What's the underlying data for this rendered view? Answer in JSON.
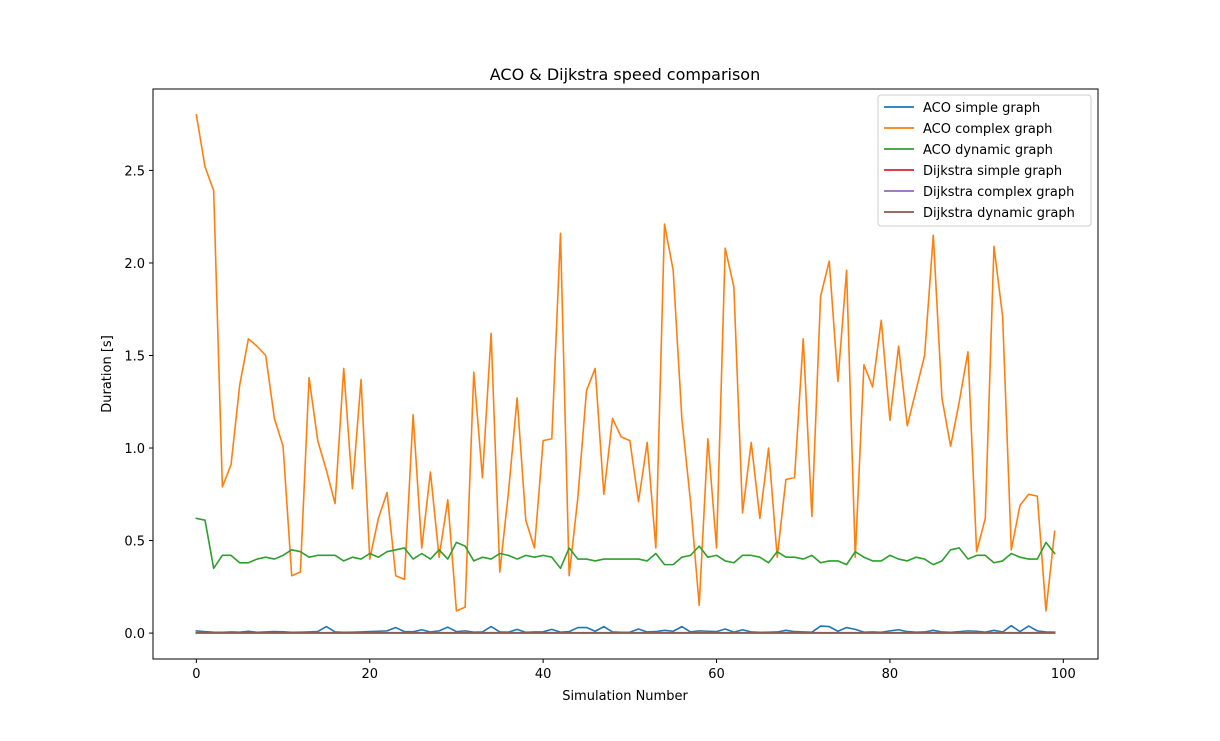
{
  "chart_data": {
    "type": "line",
    "title": "ACO & Dijkstra speed comparison",
    "xlabel": "Simulation Number",
    "ylabel": "Duration [s]",
    "xlim": [
      -5,
      104
    ],
    "ylim": [
      -0.14,
      2.94
    ],
    "xticks": [
      0,
      20,
      40,
      60,
      80,
      100
    ],
    "yticks": [
      0.0,
      0.5,
      1.0,
      1.5,
      2.0,
      2.5
    ],
    "xtick_labels": [
      "0",
      "20",
      "40",
      "60",
      "80",
      "100"
    ],
    "ytick_labels": [
      "0.0",
      "0.5",
      "1.0",
      "1.5",
      "2.0",
      "2.5"
    ],
    "grid": false,
    "legend_position": "top-right",
    "x": [
      0,
      1,
      2,
      3,
      4,
      5,
      6,
      7,
      8,
      9,
      10,
      11,
      12,
      13,
      14,
      15,
      16,
      17,
      18,
      19,
      20,
      21,
      22,
      23,
      24,
      25,
      26,
      27,
      28,
      29,
      30,
      31,
      32,
      33,
      34,
      35,
      36,
      37,
      38,
      39,
      40,
      41,
      42,
      43,
      44,
      45,
      46,
      47,
      48,
      49,
      50,
      51,
      52,
      53,
      54,
      55,
      56,
      57,
      58,
      59,
      60,
      61,
      62,
      63,
      64,
      65,
      66,
      67,
      68,
      69,
      70,
      71,
      72,
      73,
      74,
      75,
      76,
      77,
      78,
      79,
      80,
      81,
      82,
      83,
      84,
      85,
      86,
      87,
      88,
      89,
      90,
      91,
      92,
      93,
      94,
      95,
      96,
      97,
      98,
      99
    ],
    "series": [
      {
        "name": "ACO simple graph",
        "color": "#1f77b4",
        "values": [
          0.012,
          0.008,
          0.005,
          0.004,
          0.006,
          0.005,
          0.01,
          0.004,
          0.006,
          0.008,
          0.007,
          0.004,
          0.005,
          0.006,
          0.008,
          0.035,
          0.006,
          0.004,
          0.005,
          0.006,
          0.008,
          0.01,
          0.012,
          0.03,
          0.008,
          0.007,
          0.018,
          0.006,
          0.012,
          0.032,
          0.008,
          0.012,
          0.005,
          0.006,
          0.035,
          0.006,
          0.005,
          0.02,
          0.004,
          0.006,
          0.007,
          0.02,
          0.005,
          0.008,
          0.03,
          0.03,
          0.01,
          0.035,
          0.006,
          0.004,
          0.005,
          0.022,
          0.006,
          0.008,
          0.015,
          0.01,
          0.035,
          0.006,
          0.012,
          0.01,
          0.008,
          0.022,
          0.005,
          0.018,
          0.006,
          0.004,
          0.005,
          0.006,
          0.015,
          0.008,
          0.006,
          0.005,
          0.038,
          0.035,
          0.01,
          0.03,
          0.02,
          0.005,
          0.006,
          0.004,
          0.012,
          0.018,
          0.008,
          0.005,
          0.006,
          0.015,
          0.006,
          0.004,
          0.008,
          0.012,
          0.01,
          0.005,
          0.015,
          0.006,
          0.04,
          0.008,
          0.038,
          0.012,
          0.006,
          0.005
        ]
      },
      {
        "name": "ACO complex graph",
        "color": "#ff7f0e",
        "values": [
          2.8,
          2.52,
          2.39,
          0.79,
          0.91,
          1.34,
          1.59,
          1.55,
          1.5,
          1.16,
          1.01,
          0.31,
          0.33,
          1.38,
          1.04,
          0.88,
          0.7,
          1.43,
          0.78,
          1.37,
          0.4,
          0.62,
          0.76,
          0.31,
          0.29,
          1.18,
          0.46,
          0.87,
          0.41,
          0.72,
          0.12,
          0.14,
          1.41,
          0.84,
          1.62,
          0.33,
          0.76,
          1.27,
          0.61,
          0.46,
          1.04,
          1.05,
          2.16,
          0.31,
          0.73,
          1.31,
          1.43,
          0.75,
          1.16,
          1.06,
          1.04,
          0.71,
          1.03,
          0.46,
          2.21,
          1.96,
          1.16,
          0.71,
          0.15,
          1.05,
          0.46,
          2.08,
          1.87,
          0.65,
          1.03,
          0.62,
          1.0,
          0.41,
          0.83,
          0.84,
          1.59,
          0.63,
          1.82,
          2.01,
          1.36,
          1.96,
          0.41,
          1.45,
          1.33,
          1.69,
          1.15,
          1.55,
          1.12,
          1.31,
          1.5,
          2.15,
          1.27,
          1.01,
          1.25,
          1.52,
          0.44,
          0.62,
          2.09,
          1.71,
          0.45,
          0.69,
          0.75,
          0.74,
          0.12,
          0.55
        ]
      },
      {
        "name": "ACO dynamic graph",
        "color": "#2ca02c",
        "values": [
          0.62,
          0.61,
          0.35,
          0.42,
          0.42,
          0.38,
          0.38,
          0.4,
          0.41,
          0.4,
          0.42,
          0.45,
          0.44,
          0.41,
          0.42,
          0.42,
          0.42,
          0.39,
          0.41,
          0.4,
          0.43,
          0.41,
          0.44,
          0.45,
          0.46,
          0.4,
          0.43,
          0.4,
          0.45,
          0.4,
          0.49,
          0.47,
          0.39,
          0.41,
          0.4,
          0.43,
          0.42,
          0.4,
          0.42,
          0.41,
          0.42,
          0.41,
          0.35,
          0.46,
          0.4,
          0.4,
          0.39,
          0.4,
          0.4,
          0.4,
          0.4,
          0.4,
          0.39,
          0.43,
          0.37,
          0.37,
          0.41,
          0.42,
          0.47,
          0.41,
          0.42,
          0.39,
          0.38,
          0.42,
          0.42,
          0.41,
          0.38,
          0.44,
          0.41,
          0.41,
          0.4,
          0.42,
          0.38,
          0.39,
          0.39,
          0.37,
          0.44,
          0.41,
          0.39,
          0.39,
          0.42,
          0.4,
          0.39,
          0.41,
          0.4,
          0.37,
          0.39,
          0.45,
          0.46,
          0.4,
          0.42,
          0.42,
          0.38,
          0.39,
          0.43,
          0.41,
          0.4,
          0.4,
          0.49,
          0.43
        ]
      },
      {
        "name": "Dijkstra simple graph",
        "color": "#d62728",
        "values": [
          0.001,
          0.001,
          0.001,
          0.001,
          0.001,
          0.001,
          0.001,
          0.001,
          0.001,
          0.001,
          0.001,
          0.001,
          0.001,
          0.001,
          0.001,
          0.001,
          0.001,
          0.001,
          0.001,
          0.001,
          0.001,
          0.001,
          0.001,
          0.001,
          0.001,
          0.001,
          0.001,
          0.001,
          0.001,
          0.001,
          0.001,
          0.001,
          0.001,
          0.001,
          0.001,
          0.001,
          0.001,
          0.001,
          0.001,
          0.001,
          0.001,
          0.001,
          0.001,
          0.001,
          0.001,
          0.001,
          0.001,
          0.001,
          0.001,
          0.001,
          0.001,
          0.001,
          0.001,
          0.001,
          0.001,
          0.001,
          0.001,
          0.001,
          0.001,
          0.001,
          0.001,
          0.001,
          0.001,
          0.001,
          0.001,
          0.001,
          0.001,
          0.001,
          0.001,
          0.001,
          0.001,
          0.001,
          0.001,
          0.001,
          0.001,
          0.001,
          0.001,
          0.001,
          0.001,
          0.001,
          0.001,
          0.001,
          0.001,
          0.001,
          0.001,
          0.001,
          0.001,
          0.001,
          0.001,
          0.001,
          0.001,
          0.001,
          0.001,
          0.001,
          0.001,
          0.001,
          0.001,
          0.001,
          0.001,
          0.001
        ]
      },
      {
        "name": "Dijkstra complex graph",
        "color": "#9467bd",
        "values": [
          0.002,
          0.002,
          0.002,
          0.002,
          0.002,
          0.002,
          0.002,
          0.002,
          0.002,
          0.002,
          0.002,
          0.002,
          0.002,
          0.002,
          0.002,
          0.002,
          0.002,
          0.002,
          0.002,
          0.002,
          0.002,
          0.002,
          0.002,
          0.002,
          0.002,
          0.002,
          0.002,
          0.002,
          0.002,
          0.002,
          0.002,
          0.002,
          0.002,
          0.002,
          0.002,
          0.002,
          0.002,
          0.002,
          0.002,
          0.002,
          0.002,
          0.002,
          0.002,
          0.002,
          0.002,
          0.002,
          0.002,
          0.002,
          0.002,
          0.002,
          0.002,
          0.002,
          0.002,
          0.002,
          0.002,
          0.002,
          0.002,
          0.002,
          0.002,
          0.002,
          0.002,
          0.002,
          0.002,
          0.002,
          0.002,
          0.002,
          0.002,
          0.002,
          0.002,
          0.002,
          0.002,
          0.002,
          0.002,
          0.002,
          0.002,
          0.002,
          0.002,
          0.002,
          0.002,
          0.002,
          0.002,
          0.002,
          0.002,
          0.002,
          0.002,
          0.002,
          0.002,
          0.002,
          0.002,
          0.002,
          0.002,
          0.002,
          0.002,
          0.002,
          0.002,
          0.002,
          0.002,
          0.002,
          0.002,
          0.002
        ]
      },
      {
        "name": "Dijkstra dynamic graph",
        "color": "#8c564b",
        "values": [
          0.001,
          0.001,
          0.001,
          0.001,
          0.001,
          0.001,
          0.001,
          0.001,
          0.001,
          0.001,
          0.001,
          0.001,
          0.001,
          0.001,
          0.001,
          0.001,
          0.001,
          0.001,
          0.001,
          0.001,
          0.001,
          0.001,
          0.001,
          0.001,
          0.001,
          0.001,
          0.001,
          0.001,
          0.001,
          0.001,
          0.001,
          0.001,
          0.001,
          0.001,
          0.001,
          0.001,
          0.001,
          0.001,
          0.001,
          0.001,
          0.001,
          0.001,
          0.001,
          0.001,
          0.001,
          0.001,
          0.001,
          0.001,
          0.001,
          0.001,
          0.001,
          0.001,
          0.001,
          0.001,
          0.001,
          0.001,
          0.001,
          0.001,
          0.001,
          0.001,
          0.001,
          0.001,
          0.001,
          0.001,
          0.001,
          0.001,
          0.001,
          0.001,
          0.001,
          0.001,
          0.001,
          0.001,
          0.001,
          0.001,
          0.001,
          0.001,
          0.001,
          0.001,
          0.001,
          0.001,
          0.001,
          0.001,
          0.001,
          0.001,
          0.001,
          0.001,
          0.001,
          0.001,
          0.001,
          0.001,
          0.001,
          0.001,
          0.001,
          0.001,
          0.001,
          0.001,
          0.001,
          0.001,
          0.001,
          0.001
        ]
      }
    ]
  }
}
